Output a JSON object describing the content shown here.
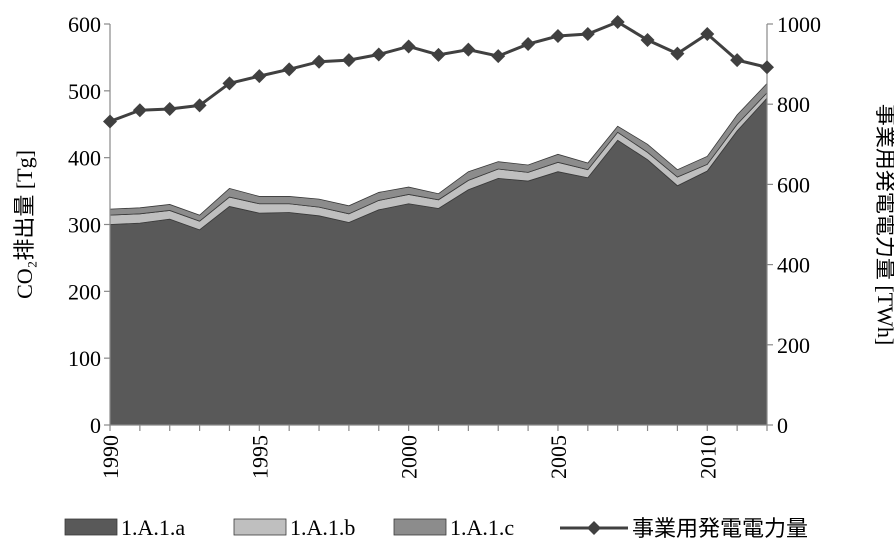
{
  "chart_data": {
    "type": "area",
    "stacked": true,
    "x": [
      1990,
      1991,
      1992,
      1993,
      1994,
      1995,
      1996,
      1997,
      1998,
      1999,
      2000,
      2001,
      2002,
      2003,
      2004,
      2005,
      2006,
      2007,
      2008,
      2009,
      2010,
      2011,
      2012
    ],
    "x_tick_labels": [
      "1990",
      "1995",
      "2000",
      "2005",
      "2010"
    ],
    "x_ticks": [
      1990,
      1995,
      2000,
      2005,
      2010
    ],
    "ylabel_left": "CO₂排出量 [Tg]",
    "ylim_left": [
      0,
      600
    ],
    "y_ticks_left": [
      0,
      100,
      200,
      300,
      400,
      500,
      600
    ],
    "ylabel_right": "事業用発電電力量 [TWh]",
    "ylim_right": [
      0,
      1000
    ],
    "y_ticks_right": [
      0,
      200,
      400,
      600,
      800,
      1000
    ],
    "grid": false,
    "legend_position": "bottom",
    "series": [
      {
        "name": "1.A.1.a",
        "axis": "left",
        "kind": "area",
        "color": "#595959",
        "values": [
          300,
          302,
          308,
          292,
          327,
          317,
          318,
          313,
          303,
          322,
          331,
          324,
          352,
          369,
          365,
          379,
          370,
          426,
          397,
          358,
          380,
          440,
          489
        ]
      },
      {
        "name": "1.A.1.b",
        "axis": "left",
        "kind": "area",
        "color": "#bfbfbf",
        "values": [
          14,
          14,
          13,
          13,
          14,
          14,
          13,
          13,
          13,
          14,
          14,
          13,
          14,
          14,
          13,
          14,
          12,
          12,
          11,
          13,
          10,
          10,
          8
        ]
      },
      {
        "name": "1.A.1.c",
        "axis": "left",
        "kind": "area",
        "color": "#8c8c8c",
        "values": [
          9,
          9,
          9,
          9,
          13,
          11,
          11,
          12,
          12,
          12,
          11,
          9,
          13,
          11,
          11,
          12,
          10,
          9,
          12,
          11,
          12,
          14,
          14
        ]
      },
      {
        "name": "事業用発電電力量",
        "axis": "right",
        "kind": "line",
        "color": "#404040",
        "marker": "diamond",
        "values": [
          757,
          785,
          788,
          797,
          852,
          870,
          887,
          906,
          910,
          924,
          944,
          923,
          936,
          920,
          950,
          970,
          975,
          1005,
          960,
          926,
          975,
          910,
          892
        ]
      }
    ]
  }
}
